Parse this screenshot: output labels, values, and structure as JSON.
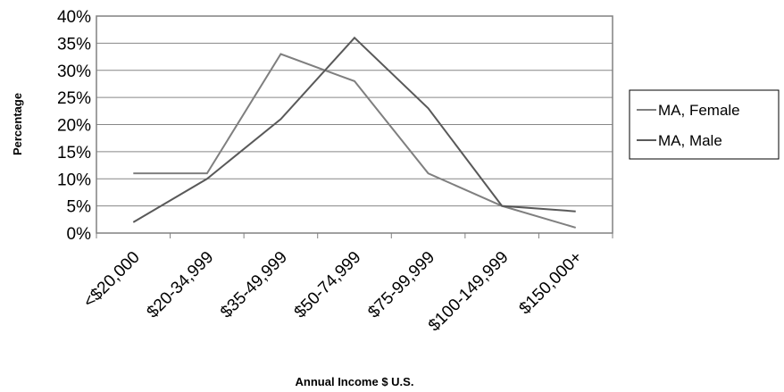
{
  "chart_data": {
    "type": "line",
    "title": "",
    "xlabel": "Annual Income $ U.S.",
    "ylabel": "Percentage",
    "categories": [
      "<$20,000",
      "$20-34,999",
      "$35-49,999",
      "$50-74,999",
      "$75-99,999",
      "$100-149,999",
      "$150,000+"
    ],
    "ylim": [
      0,
      40
    ],
    "yticks": [
      "0%",
      "5%",
      "10%",
      "15%",
      "20%",
      "25%",
      "30%",
      "35%",
      "40%"
    ],
    "grid": true,
    "legend_position": "right",
    "series": [
      {
        "name": "MA, Female",
        "values": [
          11,
          11,
          33,
          28,
          11,
          5,
          1
        ],
        "color": "#7f7f7f"
      },
      {
        "name": "MA, Male",
        "values": [
          2,
          10,
          21,
          36,
          23,
          5,
          4
        ],
        "color": "#595959"
      }
    ]
  }
}
